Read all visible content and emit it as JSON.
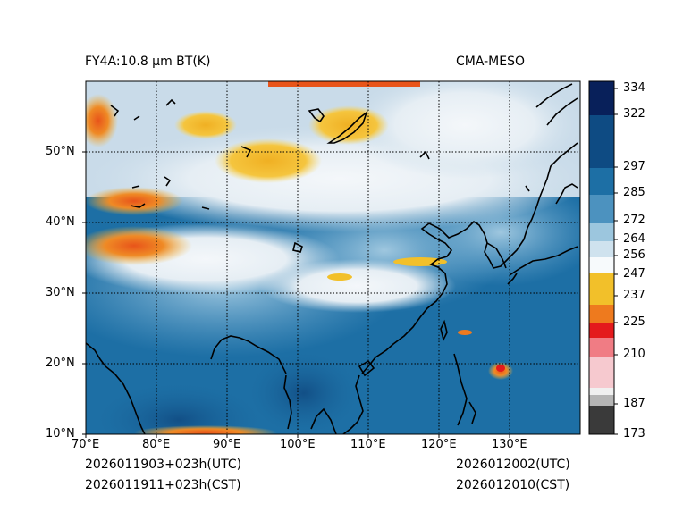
{
  "header": {
    "title_left": "FY4A:10.8 μm BT(K)",
    "title_right": "CMA-MESO"
  },
  "footer": {
    "init_utc": "2026011903+023h(UTC)",
    "init_cst": "2026011911+023h(CST)",
    "valid_utc": "2026012002(UTC)",
    "valid_cst": "2026012010(CST)"
  },
  "map": {
    "lon_range": [
      70,
      140
    ],
    "lat_range": [
      10,
      60
    ],
    "lon_ticks": [
      "70°E",
      "80°E",
      "90°E",
      "100°E",
      "110°E",
      "120°E",
      "130°E"
    ],
    "lat_ticks": [
      "10°N",
      "20°N",
      "30°N",
      "40°N",
      "50°N"
    ]
  },
  "colorbar": {
    "min": 173,
    "max": 338,
    "ticks": [
      "334",
      "322",
      "297",
      "285",
      "272",
      "264",
      "256",
      "247",
      "237",
      "225",
      "210",
      "187",
      "173"
    ],
    "colors": {
      "ocean": "#1d6fa5",
      "land_mid": "#5a9fc8",
      "cloud_white": "#eef3f7",
      "cold_yellow": "#f2c02a",
      "cold_orange": "#ee7a1e",
      "cold_red": "#e41a1c",
      "navy": "#08205a"
    }
  }
}
